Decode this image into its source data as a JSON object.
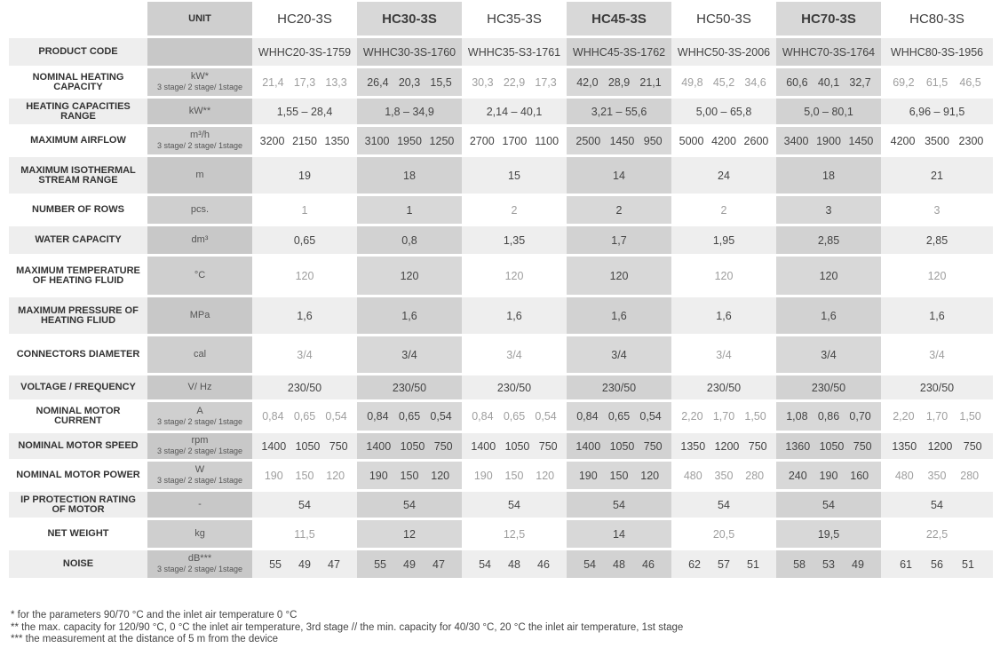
{
  "header": {
    "unit_label": "UNIT",
    "models": [
      "HC20-3S",
      "HC30-3S",
      "HC35-3S",
      "HC45-3S",
      "HC50-3S",
      "HC70-3S",
      "HC80-3S"
    ]
  },
  "rows": [
    {
      "label": "PRODUCT CODE",
      "unit": "",
      "unit_sub": "",
      "height": 34,
      "values": [
        [
          "WHHC20-3S-1759"
        ],
        [
          "WHHC30-3S-1760"
        ],
        [
          "WHHC35-S3-1761"
        ],
        [
          "WHHC45-3S-1762"
        ],
        [
          "WHHC50-3S-2006"
        ],
        [
          "WHHC70-3S-1764"
        ],
        [
          "WHHC80-3S-1956"
        ]
      ]
    },
    {
      "label": "NOMINAL HEATING CAPACITY",
      "unit": "kW*",
      "unit_sub": "3 stage/ 2 stage/ 1stage",
      "height": 34,
      "values": [
        [
          "21,4",
          "17,3",
          "13,3"
        ],
        [
          "26,4",
          "20,3",
          "15,5"
        ],
        [
          "30,3",
          "22,9",
          "17,3"
        ],
        [
          "42,0",
          "28,9",
          "21,1"
        ],
        [
          "49,8",
          "45,2",
          "34,6"
        ],
        [
          "60,6",
          "40,1",
          "32,7"
        ],
        [
          "69,2",
          "61,5",
          "46,5"
        ]
      ]
    },
    {
      "label": "HEATING CAPACITIES RANGE",
      "unit": "kW**",
      "unit_sub": "",
      "height": 32,
      "values": [
        [
          "1,55 – 28,4"
        ],
        [
          "1,8 – 34,9"
        ],
        [
          "2,14 – 40,1"
        ],
        [
          "3,21 – 55,6"
        ],
        [
          "5,00 – 65,8"
        ],
        [
          "5,0 – 80,1"
        ],
        [
          "6,96 – 91,5"
        ]
      ]
    },
    {
      "label": "MAXIMUM AIRFLOW",
      "unit": "m³/h",
      "unit_sub": "3 stage/ 2 stage/ 1stage",
      "height": 34,
      "values": [
        [
          "3200",
          "2150",
          "1350"
        ],
        [
          "3100",
          "1950",
          "1250"
        ],
        [
          "2700",
          "1700",
          "1100"
        ],
        [
          "2500",
          "1450",
          "950"
        ],
        [
          "5000",
          "4200",
          "2600"
        ],
        [
          "3400",
          "1900",
          "1450"
        ],
        [
          "4200",
          "3500",
          "2300"
        ]
      ]
    },
    {
      "label": "MAXIMUM ISOTHERMAL STREAM RANGE",
      "unit": "m",
      "unit_sub": "",
      "height": 44,
      "values": [
        [
          "19"
        ],
        [
          "18"
        ],
        [
          "15"
        ],
        [
          "14"
        ],
        [
          "24"
        ],
        [
          "18"
        ],
        [
          "21"
        ]
      ]
    },
    {
      "label": "NUMBER OF ROWS",
      "unit": "pcs.",
      "unit_sub": "",
      "height": 34,
      "values": [
        [
          "1"
        ],
        [
          "1"
        ],
        [
          "2"
        ],
        [
          "2"
        ],
        [
          "2"
        ],
        [
          "3"
        ],
        [
          "3"
        ]
      ]
    },
    {
      "label": "WATER CAPACITY",
      "unit": "dm³",
      "unit_sub": "",
      "height": 34,
      "values": [
        [
          "0,65"
        ],
        [
          "0,8"
        ],
        [
          "1,35"
        ],
        [
          "1,7"
        ],
        [
          "1,95"
        ],
        [
          "2,85"
        ],
        [
          "2,85"
        ]
      ]
    },
    {
      "label": "MAXIMUM TEMPERATURE OF HEATING FLUID",
      "unit": "°C",
      "unit_sub": "",
      "height": 46,
      "values": [
        [
          "120"
        ],
        [
          "120"
        ],
        [
          "120"
        ],
        [
          "120"
        ],
        [
          "120"
        ],
        [
          "120"
        ],
        [
          "120"
        ]
      ]
    },
    {
      "label": "MAXIMUM PRESSURE OF HEATING FLIUD",
      "unit": "MPa",
      "unit_sub": "",
      "height": 44,
      "values": [
        [
          "1,6"
        ],
        [
          "1,6"
        ],
        [
          "1,6"
        ],
        [
          "1,6"
        ],
        [
          "1,6"
        ],
        [
          "1,6"
        ],
        [
          "1,6"
        ]
      ]
    },
    {
      "label": "CONNECTORS DIAMETER",
      "unit": "cal",
      "unit_sub": "",
      "height": 44,
      "values": [
        [
          "3/4"
        ],
        [
          "3/4"
        ],
        [
          "3/4"
        ],
        [
          "3/4"
        ],
        [
          "3/4"
        ],
        [
          "3/4"
        ],
        [
          "3/4"
        ]
      ]
    },
    {
      "label": "VOLTAGE / FREQUENCY",
      "unit": "V/ Hz",
      "unit_sub": "",
      "height": 30,
      "values": [
        [
          "230/50"
        ],
        [
          "230/50"
        ],
        [
          "230/50"
        ],
        [
          "230/50"
        ],
        [
          "230/50"
        ],
        [
          "230/50"
        ],
        [
          "230/50"
        ]
      ]
    },
    {
      "label": "NOMINAL MOTOR CURRENT",
      "unit": "A",
      "unit_sub": "3 stage/ 2 stage/ 1stage",
      "height": 35,
      "values": [
        [
          "0,84",
          "0,65",
          "0,54"
        ],
        [
          "0,84",
          "0,65",
          "0,54"
        ],
        [
          "0,84",
          "0,65",
          "0,54"
        ],
        [
          "0,84",
          "0,65",
          "0,54"
        ],
        [
          "2,20",
          "1,70",
          "1,50"
        ],
        [
          "1,08",
          "0,86",
          "0,70"
        ],
        [
          "2,20",
          "1,70",
          "1,50"
        ]
      ]
    },
    {
      "label": "NOMINAL MOTOR SPEED",
      "unit": "rpm",
      "unit_sub": "3 stage/ 2 stage/ 1stage",
      "height": 32,
      "values": [
        [
          "1400",
          "1050",
          "750"
        ],
        [
          "1400",
          "1050",
          "750"
        ],
        [
          "1400",
          "1050",
          "750"
        ],
        [
          "1400",
          "1050",
          "750"
        ],
        [
          "1350",
          "1200",
          "750"
        ],
        [
          "1360",
          "1050",
          "750"
        ],
        [
          "1350",
          "1200",
          "750"
        ]
      ]
    },
    {
      "label": "NOMINAL MOTOR POWER",
      "unit": "W",
      "unit_sub": "3 stage/ 2 stage/ 1stage",
      "height": 34,
      "values": [
        [
          "190",
          "150",
          "120"
        ],
        [
          "190",
          "150",
          "120"
        ],
        [
          "190",
          "150",
          "120"
        ],
        [
          "190",
          "150",
          "120"
        ],
        [
          "480",
          "350",
          "280"
        ],
        [
          "240",
          "190",
          "160"
        ],
        [
          "480",
          "350",
          "280"
        ]
      ]
    },
    {
      "label": "IP PROTECTION RATING OF MOTOR",
      "unit": "-",
      "unit_sub": "",
      "height": 32,
      "values": [
        [
          "54"
        ],
        [
          "54"
        ],
        [
          "54"
        ],
        [
          "54"
        ],
        [
          "54"
        ],
        [
          "54"
        ],
        [
          "54"
        ]
      ]
    },
    {
      "label": "NET WEIGHT",
      "unit": "kg",
      "unit_sub": "",
      "height": 34,
      "values": [
        [
          "11,5"
        ],
        [
          "12"
        ],
        [
          "12,5"
        ],
        [
          "14"
        ],
        [
          "20,5"
        ],
        [
          "19,5"
        ],
        [
          "22,5"
        ]
      ]
    },
    {
      "label": "NOISE",
      "unit": "dB***",
      "unit_sub": "3 stage/ 2 stage/ 1stage",
      "height": 34,
      "values": [
        [
          "55",
          "49",
          "47"
        ],
        [
          "55",
          "49",
          "47"
        ],
        [
          "54",
          "48",
          "46"
        ],
        [
          "54",
          "48",
          "46"
        ],
        [
          "62",
          "57",
          "51"
        ],
        [
          "58",
          "53",
          "49"
        ],
        [
          "61",
          "56",
          "51"
        ]
      ]
    }
  ],
  "footnotes": [
    "* for the parameters 90/70 °C and the inlet air temperature 0 °C",
    "** the max. capacity for 120/90 °C, 0 °C the inlet air temperature, 3rd stage // the min. capacity for 40/30 °C, 20 °C the inlet air temperature, 1st stage",
    "*** the measurement at  the distance of 5 m from the device"
  ],
  "colors": {
    "dark_column": "#d8d8d8",
    "unit_column": "#cfcfcf",
    "band_row": "#eeeeee",
    "light_text": "#9e9e9e",
    "dark_text": "#444444"
  }
}
